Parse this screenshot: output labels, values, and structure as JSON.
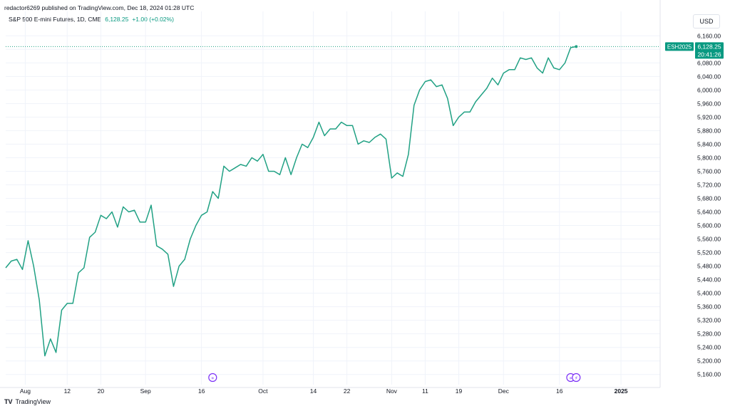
{
  "header": {
    "published": "redactor6269 published on TradingView.com, Dec 18, 2024 01:28 UTC"
  },
  "legend": {
    "symbol": "S&P 500 E-mini Futures, 1D, CME",
    "price": "6,128.25",
    "change": "+1.00 (+0.02%)"
  },
  "currency": "USD",
  "footer": {
    "brand": "TradingView",
    "logo": "TV"
  },
  "colors": {
    "line": "#21a184",
    "accent": "#089981",
    "event": "#7b2ff7",
    "grid": "#f0f3fa"
  },
  "chart_data": {
    "type": "line",
    "symbol_tag": "ESH2025",
    "last_price_label": "6,128.25",
    "countdown": "20:41:26",
    "last_value": 6128.25,
    "ylim": [
      5130,
      6190
    ],
    "y_ticks": [
      5160,
      5200,
      5240,
      5280,
      5320,
      5360,
      5400,
      5440,
      5480,
      5520,
      5560,
      5600,
      5640,
      5680,
      5720,
      5760,
      5800,
      5840,
      5880,
      5920,
      5960,
      6000,
      6040,
      6080,
      6120,
      6160
    ],
    "y_tick_labels": [
      "5,160.00",
      "5,200.00",
      "5,240.00",
      "5,280.00",
      "5,320.00",
      "5,360.00",
      "5,400.00",
      "5,440.00",
      "5,480.00",
      "5,520.00",
      "5,560.00",
      "5,600.00",
      "5,640.00",
      "5,680.00",
      "5,720.00",
      "5,760.00",
      "5,800.00",
      "5,840.00",
      "5,880.00",
      "5,920.00",
      "5,960.00",
      "6,000.00",
      "6,040.00",
      "6,080.00",
      "6,120.00",
      "6,160.00"
    ],
    "x_ticks": [
      {
        "label": "Aug",
        "index": 3.5,
        "bold": false
      },
      {
        "label": "12",
        "index": 11,
        "bold": false
      },
      {
        "label": "20",
        "index": 17,
        "bold": false
      },
      {
        "label": "Sep",
        "index": 25,
        "bold": false
      },
      {
        "label": "16",
        "index": 35,
        "bold": false
      },
      {
        "label": "Oct",
        "index": 46,
        "bold": false
      },
      {
        "label": "14",
        "index": 55,
        "bold": false
      },
      {
        "label": "22",
        "index": 61,
        "bold": false
      },
      {
        "label": "Nov",
        "index": 69,
        "bold": false
      },
      {
        "label": "11",
        "index": 75,
        "bold": false
      },
      {
        "label": "19",
        "index": 81,
        "bold": false
      },
      {
        "label": "Dec",
        "index": 89,
        "bold": false
      },
      {
        "label": "16",
        "index": 99,
        "bold": false
      },
      {
        "label": "2025",
        "index": 110,
        "bold": true
      }
    ],
    "x_domain": [
      0,
      117
    ],
    "values": [
      5475,
      5495,
      5500,
      5470,
      5555,
      5480,
      5380,
      5215,
      5265,
      5225,
      5350,
      5370,
      5370,
      5460,
      5475,
      5565,
      5580,
      5630,
      5620,
      5640,
      5595,
      5655,
      5640,
      5645,
      5610,
      5610,
      5660,
      5540,
      5530,
      5515,
      5420,
      5480,
      5500,
      5560,
      5600,
      5630,
      5640,
      5700,
      5680,
      5775,
      5760,
      5770,
      5780,
      5775,
      5800,
      5790,
      5810,
      5760,
      5760,
      5750,
      5800,
      5750,
      5800,
      5840,
      5830,
      5860,
      5905,
      5865,
      5885,
      5885,
      5905,
      5895,
      5895,
      5840,
      5850,
      5845,
      5860,
      5870,
      5855,
      5740,
      5755,
      5745,
      5810,
      5955,
      6000,
      6025,
      6030,
      6010,
      6015,
      5975,
      5895,
      5920,
      5935,
      5935,
      5965,
      5985,
      6005,
      6035,
      6015,
      6050,
      6060,
      6060,
      6095,
      6090,
      6095,
      6065,
      6050,
      6095,
      6065,
      6060,
      6080,
      6125,
      6128.25
    ],
    "events": [
      {
        "label": "»",
        "index": 37
      },
      {
        "label": "»",
        "index": 101
      },
      {
        "label": "⚡",
        "index": 102
      }
    ]
  }
}
